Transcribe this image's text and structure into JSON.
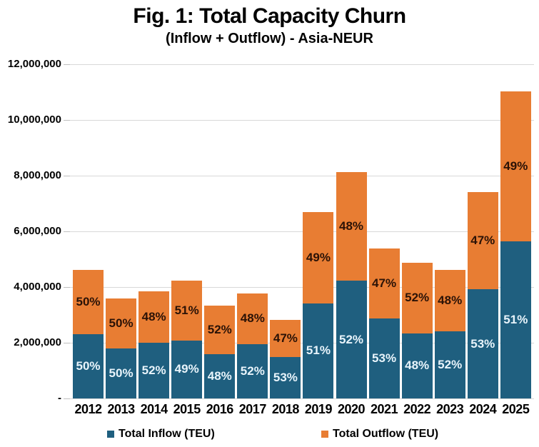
{
  "figure": {
    "title": "Fig. 1: Total Capacity Churn",
    "subtitle": "(Inflow + Outflow) - Asia-NEUR"
  },
  "colors": {
    "inflow": "#1F5F7F",
    "outflow": "#E87D33",
    "inflow_label_text": "#E8F4FB",
    "outflow_label_text": "#2B1206",
    "gridline": "#D8D8D8",
    "tick": "#BFBFBF",
    "text": "#000000"
  },
  "legend": [
    {
      "key": "inflow",
      "label": "Total Inflow (TEU)"
    },
    {
      "key": "outflow",
      "label": "Total Outflow (TEU)"
    }
  ],
  "y_axis": {
    "ticks": [
      {
        "label": "12,000,000",
        "value": 12000000
      },
      {
        "label": "10,000,000",
        "value": 10000000
      },
      {
        "label": "8,000,000",
        "value": 8000000
      },
      {
        "label": "6,000,000",
        "value": 6000000
      },
      {
        "label": "4,000,000",
        "value": 4000000
      },
      {
        "label": "2,000,000",
        "value": 2000000
      },
      {
        "label": "-",
        "value": 0
      }
    ]
  },
  "chart_data": {
    "type": "bar",
    "stacked": true,
    "title": "Fig. 1: Total Capacity Churn",
    "subtitle": "(Inflow + Outflow) - Asia-NEUR",
    "xlabel": "",
    "ylabel": "",
    "ylim": [
      0,
      12000000
    ],
    "grid": true,
    "legend_position": "bottom",
    "categories": [
      "2012",
      "2013",
      "2014",
      "2015",
      "2016",
      "2017",
      "2018",
      "2019",
      "2020",
      "2021",
      "2022",
      "2023",
      "2024",
      "2025"
    ],
    "series": [
      {
        "name": "Total Inflow (TEU)",
        "color": "#1F5F7F",
        "values": [
          2310000,
          1800000,
          2000000,
          2080000,
          1600000,
          1960000,
          1500000,
          3420000,
          4230000,
          2860000,
          2340000,
          2400000,
          3920000,
          5630000
        ],
        "labels": [
          "50%",
          "50%",
          "52%",
          "49%",
          "48%",
          "52%",
          "53%",
          "51%",
          "52%",
          "53%",
          "48%",
          "52%",
          "53%",
          "51%"
        ]
      },
      {
        "name": "Total Outflow (TEU)",
        "color": "#E87D33",
        "values": [
          2310000,
          1800000,
          1850000,
          2160000,
          1730000,
          1810000,
          1330000,
          3280000,
          3910000,
          2530000,
          2540000,
          2220000,
          3480000,
          5400000
        ],
        "labels": [
          "50%",
          "50%",
          "48%",
          "51%",
          "52%",
          "48%",
          "47%",
          "49%",
          "48%",
          "47%",
          "52%",
          "48%",
          "47%",
          "49%"
        ]
      }
    ]
  }
}
